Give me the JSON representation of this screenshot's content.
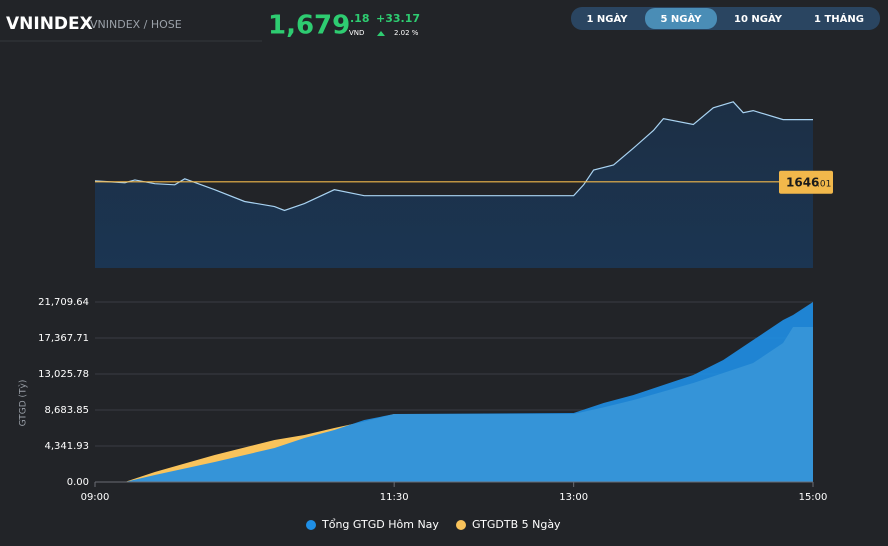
{
  "header": {
    "symbol": "VNINDEX",
    "exchange": "VNINDEX / HOSE",
    "price": "1,679",
    "price_decimal": ".18",
    "currency": "VND",
    "change": "+33.17",
    "change_pct": "2.02 %"
  },
  "tabs": [
    "1 NGÀY",
    "5 NGÀY",
    "10 NGÀY",
    "1 THÁNG"
  ],
  "chart_data": [
    {
      "type": "line",
      "color": "#a9d3f2",
      "x": [
        "09:00",
        "09:15",
        "09:20",
        "09:30",
        "09:40",
        "09:45",
        "10:00",
        "10:15",
        "10:30",
        "10:35",
        "10:45",
        "11:00",
        "11:15",
        "11:30",
        "13:00",
        "13:05",
        "13:10",
        "13:20",
        "13:30",
        "13:40",
        "13:45",
        "14:00",
        "14:10",
        "14:20",
        "14:25",
        "14:30",
        "14:45",
        "15:00"
      ],
      "values": [
        1646.5,
        1645.5,
        1647,
        1645,
        1644.4,
        1647.6,
        1641.8,
        1635.5,
        1632.8,
        1630.7,
        1634.4,
        1641.8,
        1638.6,
        1638.6,
        1638.6,
        1644.4,
        1652.3,
        1655,
        1664,
        1673.4,
        1679.7,
        1676.6,
        1685.5,
        1688.7,
        1682.9,
        1684,
        1679.2,
        1679.18
      ],
      "xlim": [
        "09:00",
        "15:00"
      ],
      "ylim": [
        1600,
        1695
      ],
      "reference": {
        "value": 1646.01,
        "label": "1646",
        "label_decimal": ".01",
        "color": "#f2b84b"
      }
    },
    {
      "type": "area",
      "y_label": "GTGD (Tỷ)",
      "x": [
        "09:00",
        "09:15",
        "09:30",
        "10:00",
        "10:30",
        "10:45",
        "11:00",
        "11:15",
        "11:30",
        "13:00",
        "13:15",
        "13:30",
        "14:00",
        "14:15",
        "14:30",
        "14:45",
        "14:50",
        "15:00"
      ],
      "series": [
        {
          "name": "Tổng GTGD Hôm Nay",
          "color": "#1f8fe6",
          "values": [
            0,
            0,
            844,
            2412,
            4100,
            5307,
            6271,
            7477,
            8200,
            8320,
            9527,
            10492,
            12904,
            14713,
            17125,
            19537,
            20140,
            21709.64
          ]
        },
        {
          "name": "GTGDTB 5 Ngày",
          "color": "#f9c35b",
          "values": [
            0,
            0,
            1206,
            3256,
            5065,
            5668,
            6512,
            7300,
            8200,
            8200,
            9000,
            9889,
            11939,
            13150,
            14351,
            16763,
            18692,
            18692
          ]
        }
      ],
      "xlim": [
        "09:00",
        "15:00"
      ],
      "ylim": [
        0,
        21709.64
      ],
      "xticks": [
        "09:00",
        "11:30",
        "13:00",
        "15:00"
      ],
      "yticks": [
        {
          "value": 0,
          "label": "0.00"
        },
        {
          "value": 4341.93,
          "label": "4,341.93"
        },
        {
          "value": 8683.85,
          "label": "8,683.85"
        },
        {
          "value": 13025.78,
          "label": "13,025.78"
        },
        {
          "value": 17367.71,
          "label": "17,367.71"
        },
        {
          "value": 21709.64,
          "label": "21,709.64"
        }
      ],
      "grid": true
    }
  ]
}
